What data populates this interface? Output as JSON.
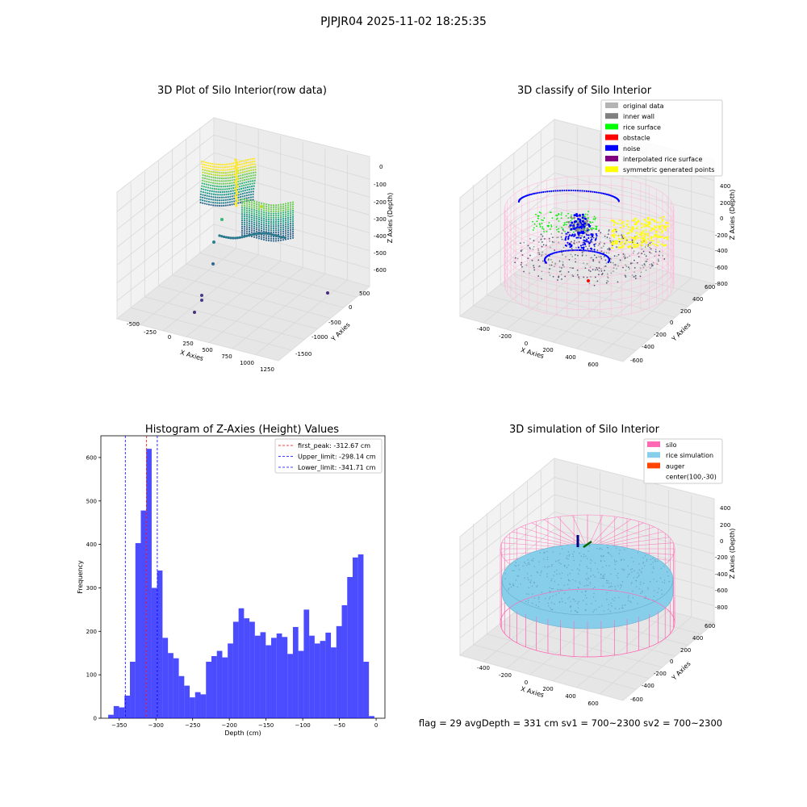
{
  "suptitle": "PJPJR04 2025-11-02 18:25:35",
  "panels": {
    "raw": {
      "title": "3D Plot of Silo Interior(row data)",
      "xlabel": "X Axies",
      "ylabel": "Y Axies",
      "zlabel": "Z Axies (Depth)",
      "xticks": [
        "-500",
        "-250",
        "0",
        "250",
        "500",
        "750",
        "1000",
        "1250"
      ],
      "yticks": [
        "500",
        "0",
        "-500",
        "-1000",
        "-1500"
      ],
      "zticks": [
        "0",
        "-100",
        "-200",
        "-300",
        "-400",
        "-500",
        "-600"
      ]
    },
    "classify": {
      "title": "3D classify of Silo Interior",
      "xlabel": "X Axies",
      "ylabel": "Y Axies",
      "zlabel": "Z Axies (Depth)",
      "xticks": [
        "-400",
        "-200",
        "0",
        "200",
        "400",
        "600"
      ],
      "yticks": [
        "600",
        "400",
        "200",
        "0",
        "-200",
        "-400",
        "-600"
      ],
      "zticks": [
        "400",
        "200",
        "0",
        "-200",
        "-400",
        "-600",
        "-800"
      ],
      "legend": [
        {
          "label": "original data",
          "color": "#b4b4b4"
        },
        {
          "label": "inner wall",
          "color": "#808080"
        },
        {
          "label": "rice surface",
          "color": "#00ff00"
        },
        {
          "label": "obstacle",
          "color": "#ff0000"
        },
        {
          "label": "noise",
          "color": "#0000ff"
        },
        {
          "label": "interpolated rice surface",
          "color": "#800080"
        },
        {
          "label": "symmetric generated points",
          "color": "#ffff00"
        }
      ]
    },
    "simulation": {
      "title": "3D simulation of Silo Interior",
      "xlabel": "X Axies",
      "ylabel": "Y Axies",
      "zlabel": "Z Axies (Depth)",
      "xticks": [
        "-400",
        "-200",
        "0",
        "200",
        "400",
        "600"
      ],
      "yticks": [
        "600",
        "400",
        "200",
        "0",
        "-200",
        "-400",
        "-600"
      ],
      "zticks": [
        "400",
        "200",
        "0",
        "-200",
        "-400",
        "-600",
        "-800"
      ],
      "legend": [
        {
          "label": "silo",
          "color": "#ff69b4"
        },
        {
          "label": "rice simulation",
          "color": "#87ceeb"
        },
        {
          "label": "auger",
          "color": "#ff4500"
        },
        {
          "label": "center(100,-30)",
          "color": ""
        }
      ]
    }
  },
  "status_line": "flag = 29  avgDepth = 331 cm  sv1 = 700~2300  sv2 = 700~2300",
  "chart_data": {
    "type": "bar",
    "title": "Histogram of Z-Axies (Height) Values",
    "xlabel": "Depth (cm)",
    "ylabel": "Frequency",
    "xlim": [
      -375,
      12
    ],
    "ylim": [
      0,
      650
    ],
    "xticks": [
      -350,
      -300,
      -250,
      -200,
      -150,
      -100,
      -50,
      0
    ],
    "yticks": [
      0,
      100,
      200,
      300,
      400,
      500,
      600
    ],
    "bar_color": "#0000ff",
    "bins_start": -365,
    "bin_width": 7.4,
    "values": [
      8,
      28,
      25,
      52,
      130,
      403,
      478,
      620,
      300,
      340,
      185,
      150,
      138,
      97,
      75,
      48,
      60,
      55,
      130,
      143,
      155,
      140,
      172,
      222,
      253,
      230,
      222,
      190,
      198,
      168,
      185,
      195,
      187,
      148,
      210,
      155,
      250,
      190,
      172,
      178,
      197,
      163,
      212,
      260,
      325,
      370,
      377,
      130,
      5
    ],
    "lines": [
      {
        "label": "first_peak: -312.67 cm",
        "x": -312.67,
        "color": "#ff0000"
      },
      {
        "label": "Upper_limit: -298.14 cm",
        "x": -298.14,
        "color": "#0000ff"
      },
      {
        "label": "Lower_limit: -341.71 cm",
        "x": -341.71,
        "color": "#0000ff"
      }
    ],
    "legend_position": "upper-right"
  }
}
